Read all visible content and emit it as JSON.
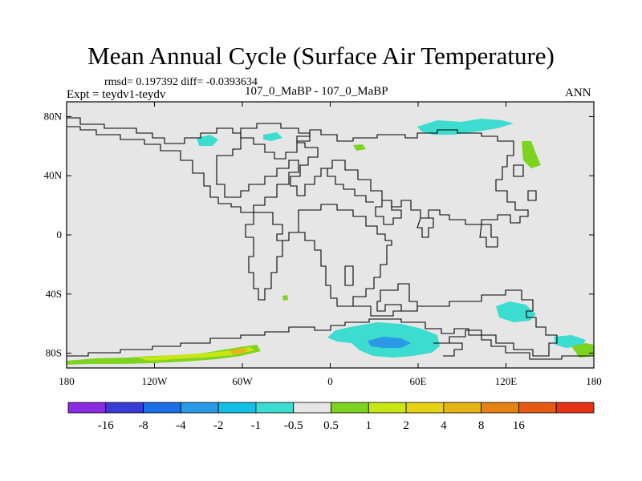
{
  "title": "Mean Annual Cycle (Surface Air Temperature)",
  "stats_line": "rmsd= 0.197392 diff= -0.0393634",
  "experiment_label": "Expt = teydv1-teydv",
  "center_label": "107_0_MaBP - 107_0_MaBP",
  "season_label": "ANN",
  "map": {
    "projection": "cylindrical equidistant",
    "lon_range": [
      -180,
      180
    ],
    "lat_range": [
      -90,
      90
    ],
    "lat_ticks": [
      {
        "value": 80,
        "label": "80N"
      },
      {
        "value": 40,
        "label": "40N"
      },
      {
        "value": 0,
        "label": "0"
      },
      {
        "value": -40,
        "label": "40S"
      },
      {
        "value": -80,
        "label": "80S"
      }
    ],
    "lon_ticks": [
      {
        "value": -180,
        "label": "180"
      },
      {
        "value": -120,
        "label": "120W"
      },
      {
        "value": -60,
        "label": "60W"
      },
      {
        "value": 0,
        "label": "0"
      },
      {
        "value": 60,
        "label": "60E"
      },
      {
        "value": 120,
        "label": "120E"
      },
      {
        "value": 180,
        "label": "180"
      }
    ],
    "background_color": "#e6e6e6"
  },
  "colorbar": {
    "colors": [
      "#8a2be2",
      "#3a3ad6",
      "#1a6ee6",
      "#2a9ae6",
      "#14bfe6",
      "#3cdcd0",
      "#e6e6e6",
      "#7ed320",
      "#c8e614",
      "#e6d214",
      "#e6b414",
      "#e68214",
      "#e65a14",
      "#e63214"
    ],
    "labels": [
      "-16",
      "-8",
      "-4",
      "-2",
      "-1",
      "-0.5",
      "0.5",
      "1",
      "2",
      "4",
      "8",
      "16"
    ]
  }
}
